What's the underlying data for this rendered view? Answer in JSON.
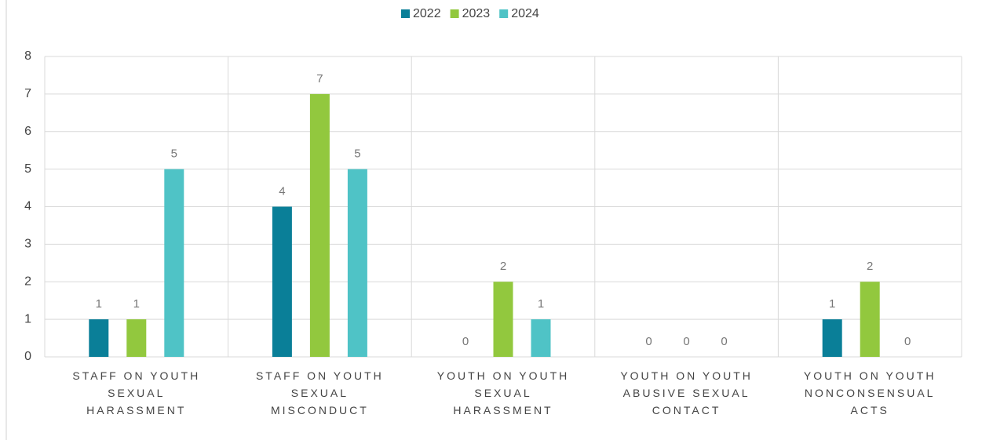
{
  "chart_data": {
    "type": "bar",
    "categories": [
      "STAFF ON YOUTH SEXUAL HARASSMENT",
      "STAFF ON YOUTH SEXUAL MISCONDUCT",
      "YOUTH ON YOUTH SEXUAL HARASSMENT",
      "YOUTH ON YOUTH ABUSIVE SEXUAL CONTACT",
      "YOUTH ON YOUTH NONCONSENSUAL ACTS"
    ],
    "series": [
      {
        "name": "2022",
        "color": "#0a7f98",
        "values": [
          1,
          4,
          0,
          0,
          1
        ]
      },
      {
        "name": "2023",
        "color": "#92c83e",
        "values": [
          1,
          7,
          2,
          0,
          2
        ]
      },
      {
        "name": "2024",
        "color": "#4fc3c6",
        "values": [
          5,
          5,
          1,
          0,
          0
        ]
      }
    ],
    "ylim": [
      0,
      8
    ],
    "yticks": [
      0,
      1,
      2,
      3,
      4,
      5,
      6,
      7,
      8
    ],
    "grid": true,
    "legend": "top"
  }
}
